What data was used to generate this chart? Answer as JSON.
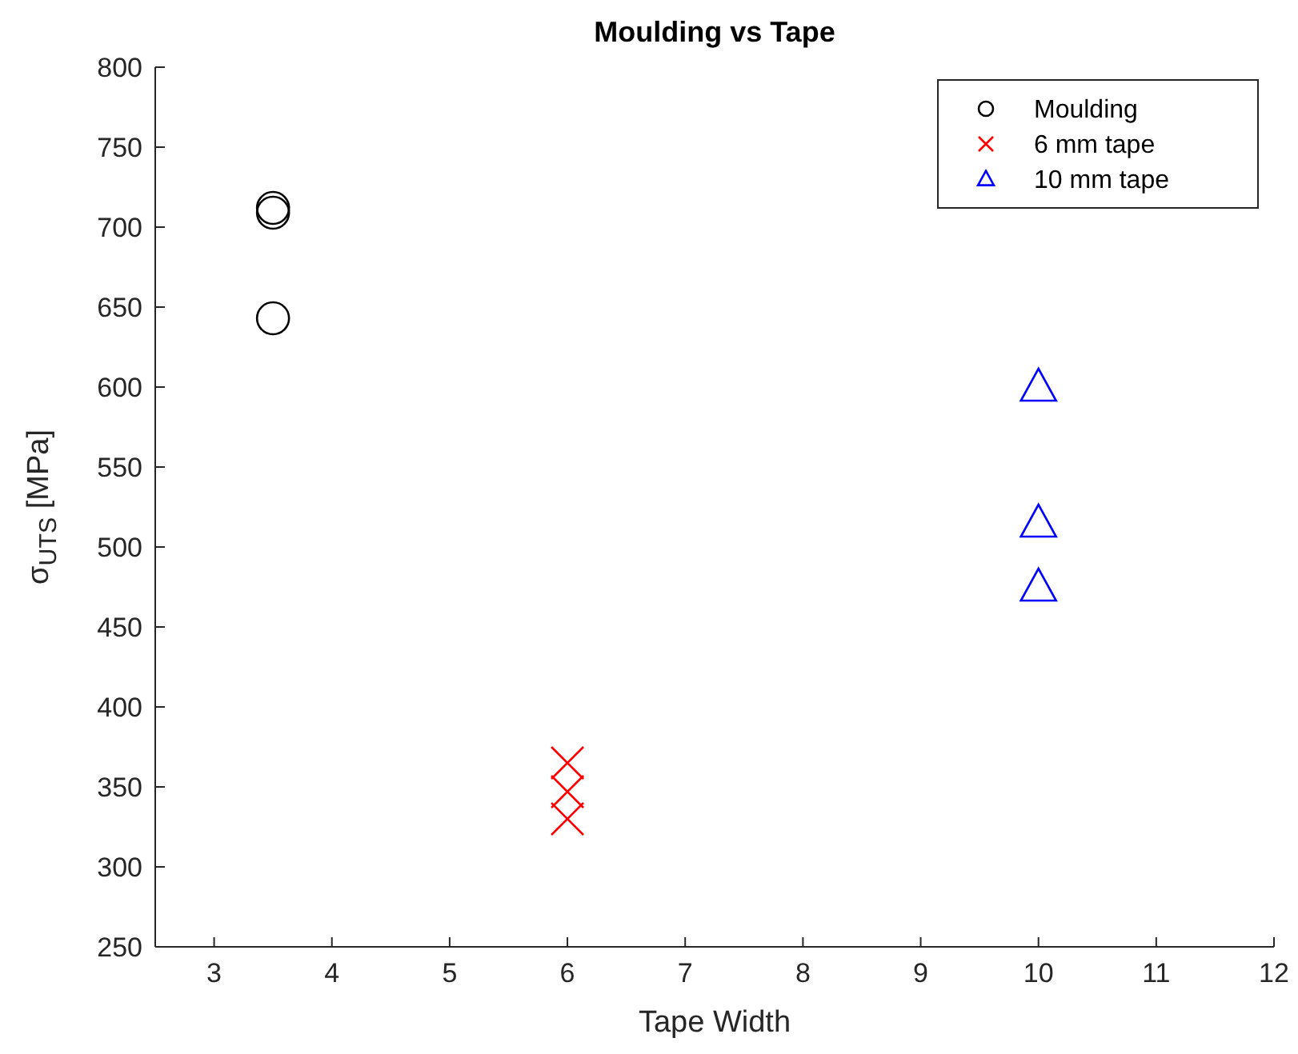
{
  "chart_data": {
    "type": "scatter",
    "title": "Moulding vs Tape",
    "xlabel": "Tape Width",
    "ylabel": "σ$_{UTS}$ [MPa]",
    "xlim": [
      2.5,
      12
    ],
    "xticks": [
      3,
      4,
      5,
      6,
      7,
      8,
      9,
      10,
      11,
      12
    ],
    "ylim": [
      250,
      800
    ],
    "yticks": [
      250,
      300,
      350,
      400,
      450,
      500,
      550,
      600,
      650,
      700,
      750,
      800
    ],
    "legend": "top right",
    "grid": false,
    "series": [
      {
        "name": "Moulding",
        "color": "#000000",
        "marker": "circle",
        "x": [
          3.5,
          3.5,
          3.5
        ],
        "values": [
          712,
          709,
          643
        ]
      },
      {
        "name": "6 mm tape",
        "color": "#ff0000",
        "marker": "cross",
        "x": [
          6,
          6,
          6
        ],
        "values": [
          365,
          347,
          330
        ]
      },
      {
        "name": "10 mm tape",
        "color": "#0000ff",
        "marker": "triangle",
        "x": [
          10,
          10,
          10
        ],
        "values": [
          600,
          515,
          475
        ]
      }
    ]
  }
}
